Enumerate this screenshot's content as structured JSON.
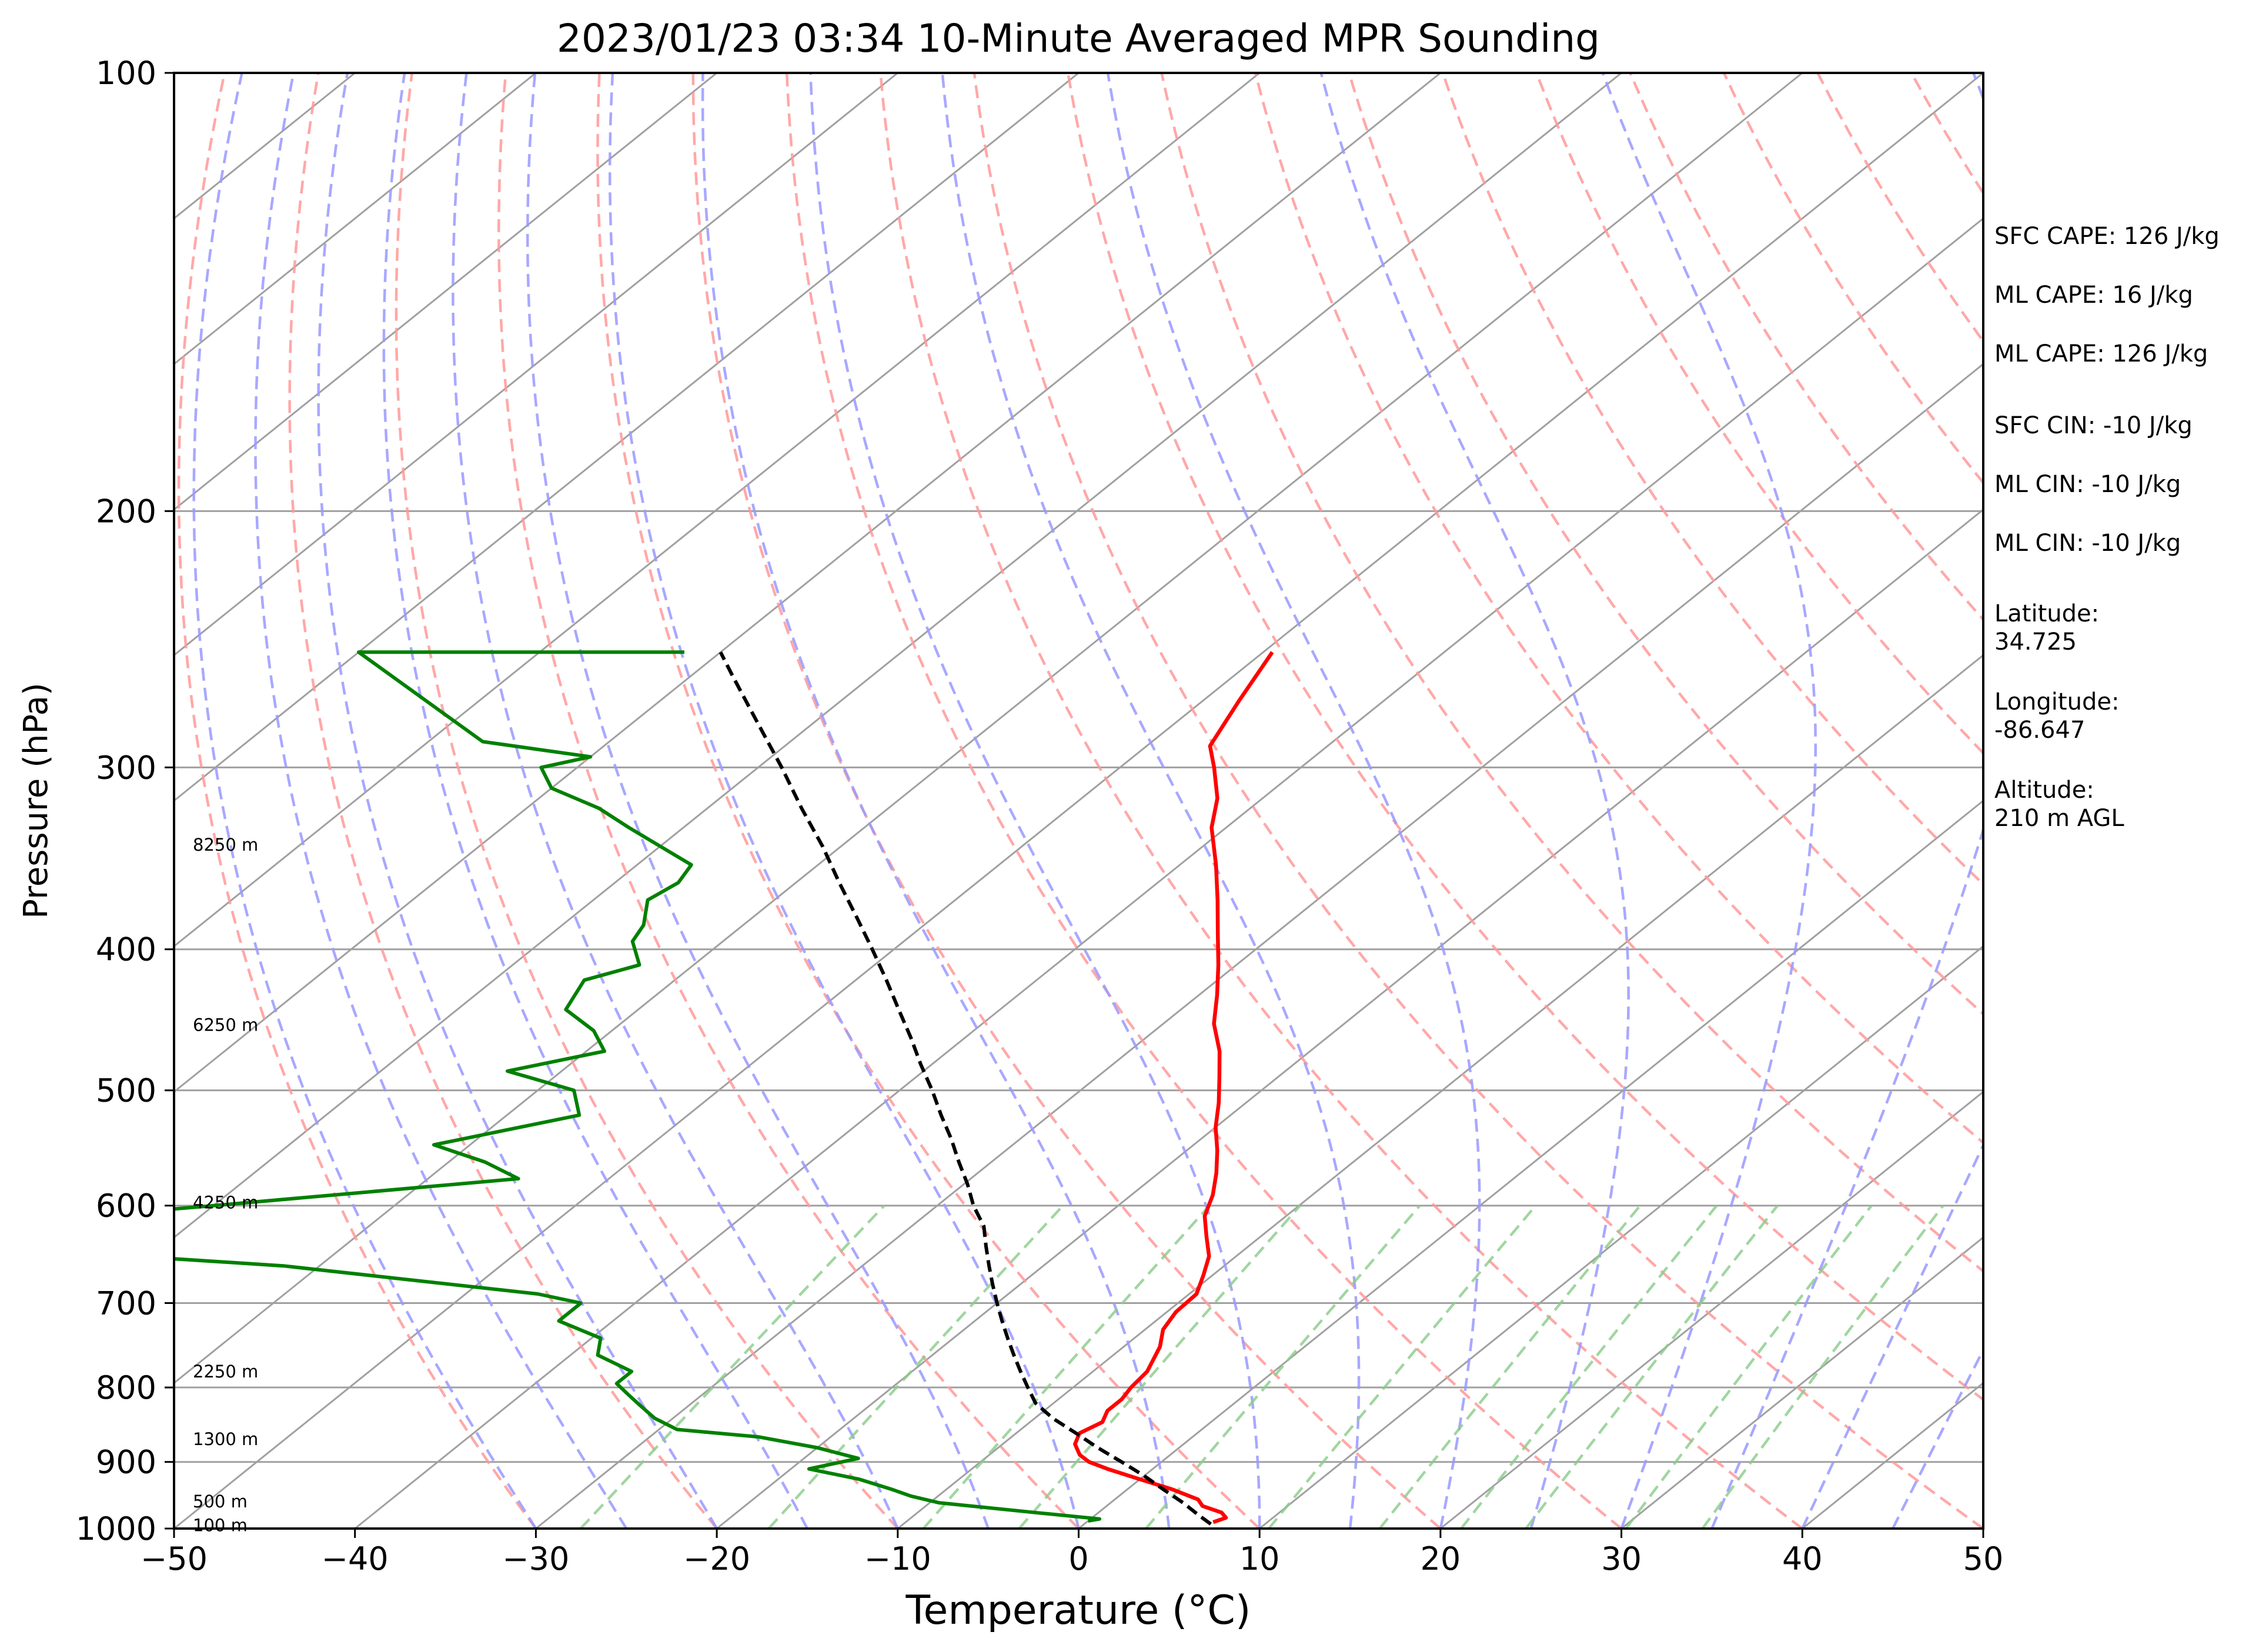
{
  "title": "2023/01/23 03:34 10-Minute Averaged MPR Sounding",
  "xlabel": "Temperature (°C)",
  "ylabel": "Pressure (hPa)",
  "info_lines": [
    "SFC CAPE: 126 J/kg",
    "ML CAPE: 16 J/kg",
    "ML CAPE: 126 J/kg",
    "SFC CIN: -10 J/kg",
    "ML CIN: -10 J/kg",
    "ML CIN: -10 J/kg",
    "Latitude:\n34.725",
    "Longitude:\n-86.647",
    "Altitude:\n210 m AGL"
  ],
  "colors": {
    "temperature": "#ff0000",
    "dewpoint": "#008000",
    "parcel": "#000000",
    "dry_adiabat": "#ff9999",
    "moist_adiabat": "#9999ff",
    "mixing_ratio": "#88cc88",
    "isotherm": "#a0a0a0",
    "isobar": "#a0a0a0"
  },
  "chart_data": {
    "type": "line",
    "subtype": "skew-t log-p",
    "xlim": [
      -50,
      50
    ],
    "ylim": [
      1000,
      100
    ],
    "yscale": "log",
    "xticks": [
      -50,
      -40,
      -30,
      -20,
      -10,
      0,
      10,
      20,
      30,
      40,
      50
    ],
    "xtick_labels": [
      "−50",
      "−40",
      "−30",
      "−20",
      "−10",
      "0",
      "10",
      "20",
      "30",
      "40",
      "50"
    ],
    "yticks": [
      1000,
      900,
      800,
      700,
      600,
      500,
      400,
      300,
      200,
      100
    ],
    "ytick_labels": [
      "1000",
      "900",
      "800",
      "700",
      "600",
      "500",
      "400",
      "300",
      "200",
      "100"
    ],
    "isobars": [
      900,
      800,
      700,
      600,
      500,
      400,
      300,
      200
    ],
    "height_labels": [
      {
        "p": 995,
        "label": "100 m"
      },
      {
        "p": 958,
        "label": "500 m"
      },
      {
        "p": 868,
        "label": "1300 m"
      },
      {
        "p": 780,
        "label": "2250 m"
      },
      {
        "p": 597,
        "label": "4250 m"
      },
      {
        "p": 451,
        "label": "6250 m"
      },
      {
        "p": 339,
        "label": "8250 m"
      }
    ],
    "series": [
      {
        "p": [
          990,
          983,
          975,
          965,
          955,
          940,
          925,
          910,
          900,
          890,
          875,
          860,
          845,
          830,
          815,
          800,
          780,
          750,
          730,
          710,
          690,
          670,
          650,
          630,
          610,
          590,
          570,
          550,
          530,
          510,
          490,
          470,
          450,
          430,
          410,
          390,
          370,
          350,
          330,
          315,
          300,
          290,
          270,
          250
        ],
        "temp": [
          7.0,
          7.4,
          6.8,
          5.3,
          4.6,
          2.5,
          0.0,
          -2.5,
          -4.0,
          -5.0,
          -6.0,
          -6.5,
          -6.0,
          -6.5,
          -6.5,
          -6.8,
          -7.0,
          -8.0,
          -9.0,
          -9.5,
          -9.6,
          -10.5,
          -11.5,
          -13.0,
          -14.5,
          -15.5,
          -16.8,
          -18.3,
          -20.0,
          -21.5,
          -23.2,
          -25.0,
          -27.2,
          -29.0,
          -31.0,
          -33.2,
          -35.5,
          -38.0,
          -40.8,
          -42.5,
          -44.8,
          -46.5,
          -48.0,
          -49.5
        ]
      },
      {
        "p": [
          988,
          985,
          975,
          960,
          950,
          940,
          925,
          910,
          895,
          880,
          865,
          855,
          840,
          830,
          820,
          810,
          795,
          780,
          760,
          740,
          720,
          700,
          690,
          660,
          640,
          625,
          600,
          575,
          560,
          545,
          520,
          500,
          485,
          470,
          455,
          440,
          420,
          410,
          395,
          385,
          370,
          360,
          350,
          330,
          320,
          310,
          300,
          295,
          288,
          250,
          250
        ],
        "dwpt": [
          0.0,
          0.5,
          -3.5,
          -9.5,
          -11.5,
          -13.0,
          -15.5,
          -19.0,
          -17.0,
          -20.0,
          -24.0,
          -29.0,
          -31.0,
          -32.0,
          -33.0,
          -34.0,
          -35.5,
          -35.5,
          -38.5,
          -39.5,
          -43.0,
          -43.0,
          -46.0,
          -62.0,
          -80.0,
          -85.0,
          -70.0,
          -55.0,
          -58.0,
          -62.0,
          -56.0,
          -58.0,
          -63.0,
          -59.0,
          -61.0,
          -64.0,
          -65.0,
          -63.0,
          -65.0,
          -65.5,
          -67.0,
          -66.5,
          -67.0,
          -73.0,
          -76.0,
          -80.0,
          -82.0,
          -80.0,
          -87.0,
          -100.0,
          -82.0
        ]
      },
      {
        "p": [
          993,
          980,
          960,
          940,
          920,
          900,
          880,
          860,
          840,
          820,
          800,
          780,
          760,
          740,
          720,
          700,
          680,
          660,
          640,
          620,
          600,
          580,
          560,
          540,
          520,
          500,
          480,
          460,
          440,
          420,
          400,
          380,
          360,
          340,
          320,
          300,
          280,
          260,
          250
        ],
        "parcel": [
          7.0,
          5.8,
          4.0,
          2.0,
          0.0,
          -2.2,
          -4.5,
          -6.7,
          -9.0,
          -11.0,
          -12.5,
          -14.0,
          -15.5,
          -17.0,
          -18.5,
          -20.0,
          -21.5,
          -23.0,
          -24.5,
          -26.0,
          -28.0,
          -29.8,
          -31.8,
          -33.8,
          -36.0,
          -38.2,
          -40.6,
          -43.0,
          -45.6,
          -48.3,
          -51.2,
          -54.3,
          -57.6,
          -61.0,
          -64.8,
          -68.7,
          -73.0,
          -77.6,
          -80.0
        ]
      }
    ]
  }
}
